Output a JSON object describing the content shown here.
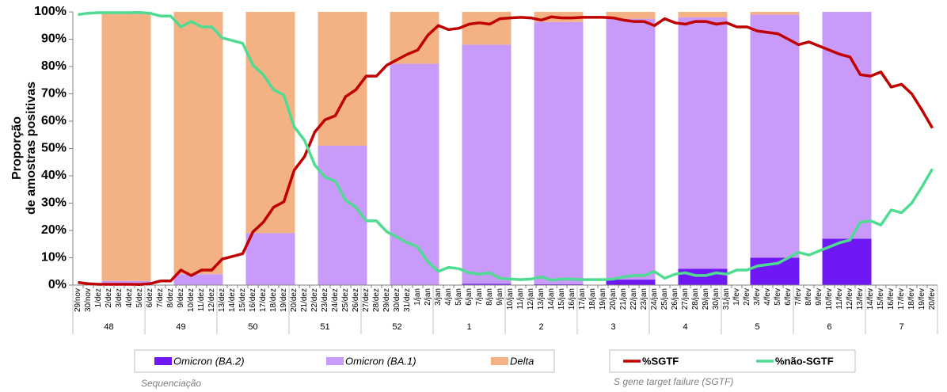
{
  "chart_data": {
    "type": "bar_line",
    "y_axis_label": [
      "Proporção",
      "de amostras positivas"
    ],
    "categories": [
      "29/nov",
      "30/nov",
      "1/dez",
      "2/dez",
      "3/dez",
      "4/dez",
      "5/dez",
      "6/dez",
      "7/dez",
      "8/dez",
      "9/dez",
      "10/dez",
      "11/dez",
      "12/dez",
      "13/dez",
      "14/dez",
      "15/dez",
      "16/dez",
      "17/dez",
      "18/dez",
      "19/dez",
      "20/dez",
      "21/dez",
      "22/dez",
      "23/dez",
      "24/dez",
      "25/dez",
      "26/dez",
      "27/dez",
      "28/dez",
      "29/dez",
      "30/dez",
      "31/dez",
      "1/jan",
      "2/jan",
      "3/jan",
      "4/jan",
      "5/jan",
      "6/jan",
      "7/jan",
      "8/jan",
      "9/jan",
      "10/jan",
      "11/jan",
      "12/jan",
      "13/jan",
      "14/jan",
      "15/jan",
      "16/jan",
      "17/jan",
      "18/jan",
      "19/jan",
      "20/jan",
      "21/jan",
      "22/jan",
      "23/jan",
      "24/jan",
      "25/jan",
      "26/jan",
      "27/jan",
      "28/jan",
      "29/jan",
      "30/jan",
      "31/jan",
      "1/fev",
      "2/fev",
      "3/fev",
      "4/fev",
      "5/fev",
      "6/fev",
      "7/fev",
      "8/fev",
      "9/fev",
      "10/fev",
      "11/fev",
      "12/fev",
      "13/fev",
      "14/fev",
      "15/fev",
      "16/fev",
      "17/fev",
      "18/fev",
      "19/fev",
      "20/fev"
    ],
    "weeks": [
      "48",
      "49",
      "50",
      "51",
      "52",
      "1",
      "2",
      "3",
      "4",
      "5",
      "6",
      "7"
    ],
    "ylim": [
      0,
      100
    ],
    "yticks": [
      {
        "value": 0,
        "label": "0%"
      },
      {
        "value": 10,
        "label": "10%"
      },
      {
        "value": 20,
        "label": "20%"
      },
      {
        "value": 30,
        "label": "30%"
      },
      {
        "value": 40,
        "label": "40%"
      },
      {
        "value": 50,
        "label": "50%"
      },
      {
        "value": 60,
        "label": "60%"
      },
      {
        "value": 70,
        "label": "70%"
      },
      {
        "value": 80,
        "label": "80%"
      },
      {
        "value": 90,
        "label": "90%"
      },
      {
        "value": 100,
        "label": "100%"
      }
    ],
    "bar_series": [
      {
        "name": "Omicron (BA.2)",
        "color": "#6f17f5",
        "values": [
          0,
          0,
          0,
          0,
          0,
          0.5,
          0.3,
          2,
          6,
          10,
          17,
          null
        ]
      },
      {
        "name": "Omicron (BA.1)",
        "color": "#c89bfb",
        "values": [
          1.5,
          4,
          19,
          51,
          81,
          87.5,
          96,
          95.5,
          92,
          89,
          83,
          null
        ]
      },
      {
        "name": "Delta",
        "color": "#f4b183",
        "values": [
          98.5,
          96,
          81,
          49,
          19,
          12,
          3.7,
          2.5,
          2,
          1,
          0,
          null
        ]
      }
    ],
    "bar_legend_caption": "Sequenciação",
    "line_series": [
      {
        "name": "%SGTF",
        "color": "#c00000",
        "values": [
          1,
          0.5,
          0.3,
          0.3,
          0.3,
          0.3,
          0.2,
          0.5,
          1.5,
          1.5,
          5.5,
          3.5,
          5.5,
          5.5,
          9.5,
          10.5,
          11.5,
          19.5,
          23,
          28.5,
          30.5,
          42,
          47,
          56,
          60.5,
          62,
          69,
          71.5,
          76.5,
          76.5,
          80.5,
          82.5,
          84.5,
          86,
          91.5,
          95,
          93.5,
          94,
          95.5,
          96,
          95.5,
          97.5,
          97.8,
          98,
          97.8,
          97,
          98.2,
          97.8,
          97.8,
          98,
          98,
          98,
          97.8,
          97,
          96.5,
          96.5,
          95,
          97.5,
          96,
          95.5,
          96.5,
          96.5,
          95.5,
          96,
          94.5,
          94.5,
          93,
          92.5,
          92,
          90,
          88,
          89,
          87.5,
          86,
          84.5,
          83.5,
          77,
          76.5,
          78,
          72.5,
          73.5,
          70,
          64,
          57.5
        ]
      },
      {
        "name": "%não-SGTF",
        "color": "#4fdc92",
        "values": [
          99,
          99.5,
          99.7,
          99.7,
          99.7,
          99.7,
          99.8,
          99.5,
          98.5,
          98.5,
          94.5,
          96.5,
          94.5,
          94.5,
          90.5,
          89.5,
          88.5,
          80.5,
          77,
          71.5,
          69.5,
          58,
          53,
          44,
          39.5,
          38,
          31,
          28.5,
          23.5,
          23.5,
          19.5,
          17.5,
          15.5,
          14,
          8.5,
          5,
          6.5,
          6,
          4.5,
          4,
          4.5,
          2.5,
          2.2,
          2,
          2.2,
          3,
          1.8,
          2.2,
          2.2,
          2,
          2,
          2,
          2.2,
          3,
          3.5,
          3.5,
          5,
          2.5,
          4,
          4.5,
          3.5,
          3.5,
          4.5,
          4,
          5.5,
          5.5,
          7,
          7.5,
          8,
          10,
          12,
          11,
          12.5,
          14,
          15.5,
          16.5,
          23,
          23.5,
          22,
          27.5,
          26.5,
          30,
          36,
          42.5
        ]
      }
    ],
    "line_legend_caption": "S gene target failure (SGTF)"
  }
}
